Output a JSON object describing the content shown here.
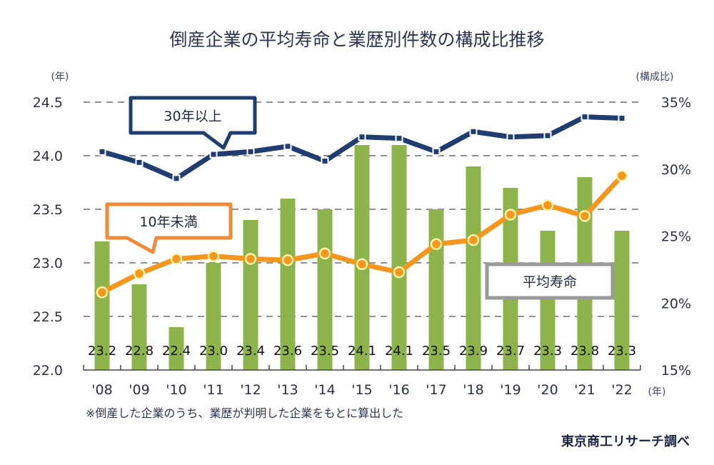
{
  "chart_data": {
    "type": "bar",
    "title": "倒産企業の平均寿命と業歴別件数の構成比推移",
    "xlabel": "",
    "x_unit": "(年)",
    "ylabel_left": "(年)",
    "ylabel_right": "(構成比)",
    "categories": [
      "'08",
      "'09",
      "'10",
      "'11",
      "'12",
      "'13",
      "'14",
      "'15",
      "'16",
      "'17",
      "'18",
      "'19",
      "'20",
      "'21",
      "'22"
    ],
    "ylim_left": [
      22.0,
      24.5
    ],
    "yticks_left": [
      "22.0",
      "22.5",
      "23.0",
      "23.5",
      "24.0",
      "24.5"
    ],
    "ylim_right": [
      15,
      35
    ],
    "yticks_right": [
      "15%",
      "20%",
      "25%",
      "30%",
      "35%"
    ],
    "grid": true,
    "series": [
      {
        "name": "平均寿命",
        "type": "bar",
        "axis": "left",
        "color": "#8db44b",
        "values": [
          23.2,
          22.8,
          22.4,
          23.0,
          23.4,
          23.6,
          23.5,
          24.1,
          24.1,
          23.5,
          23.9,
          23.7,
          23.3,
          23.8,
          23.3
        ],
        "labels": [
          "23.2",
          "22.8",
          "22.4",
          "23.0",
          "23.4",
          "23.6",
          "23.5",
          "24.1",
          "24.1",
          "23.5",
          "23.9",
          "23.7",
          "23.3",
          "23.8",
          "23.3"
        ]
      },
      {
        "name": "30年以上",
        "type": "line",
        "axis": "right",
        "color": "#1f3d70",
        "values": [
          31.3,
          30.5,
          29.3,
          31.1,
          31.3,
          31.7,
          30.6,
          32.4,
          32.3,
          31.3,
          32.8,
          32.4,
          32.5,
          33.9,
          33.8
        ]
      },
      {
        "name": "10年未満",
        "type": "line",
        "axis": "right",
        "color": "#f5961e",
        "values": [
          20.8,
          22.2,
          23.3,
          23.5,
          23.3,
          23.2,
          23.7,
          22.9,
          22.3,
          24.4,
          24.7,
          26.6,
          27.3,
          26.5,
          29.5
        ]
      }
    ],
    "callouts": [
      {
        "text": "30年以上",
        "series": "30年以上",
        "border_color": "#1f3d70"
      },
      {
        "text": "10年未満",
        "series": "10年未満",
        "border_color": "#ee8a3c"
      },
      {
        "text": "平均寿命",
        "series": "平均寿命",
        "border_color": "#9a9a9a"
      }
    ],
    "footnote": "※倒産した企業のうち、業歴が判明した企業をもとに算出した",
    "source": "東京商工リサーチ調べ"
  }
}
